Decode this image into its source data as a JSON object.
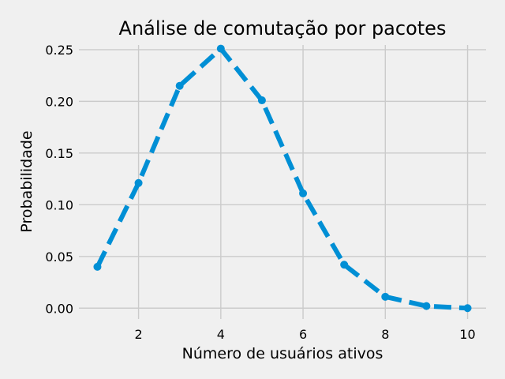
{
  "chart_data": {
    "type": "line",
    "title": "Análise de comutação por pacotes",
    "xlabel": "Número de usuários ativos",
    "ylabel": "Probabilidade",
    "x": [
      1,
      2,
      3,
      4,
      5,
      6,
      7,
      8,
      9,
      10
    ],
    "series": [
      {
        "values": [
          0.04,
          0.121,
          0.215,
          0.251,
          0.201,
          0.111,
          0.042,
          0.011,
          0.002,
          0.0
        ],
        "color": "#008fd5",
        "line_style": "dashed",
        "marker": "circle"
      }
    ],
    "xlim": [
      0.55,
      10.45
    ],
    "ylim": [
      -0.0105,
      0.2545
    ],
    "xticks": [
      2,
      4,
      6,
      8,
      10
    ],
    "xtick_labels": [
      "2",
      "4",
      "6",
      "8",
      "10"
    ],
    "yticks": [
      0.0,
      0.05,
      0.1,
      0.15,
      0.2,
      0.25
    ],
    "ytick_labels": [
      "0.00",
      "0.05",
      "0.10",
      "0.15",
      "0.20",
      "0.25"
    ],
    "grid": true,
    "style": "fivethirtyeight"
  }
}
